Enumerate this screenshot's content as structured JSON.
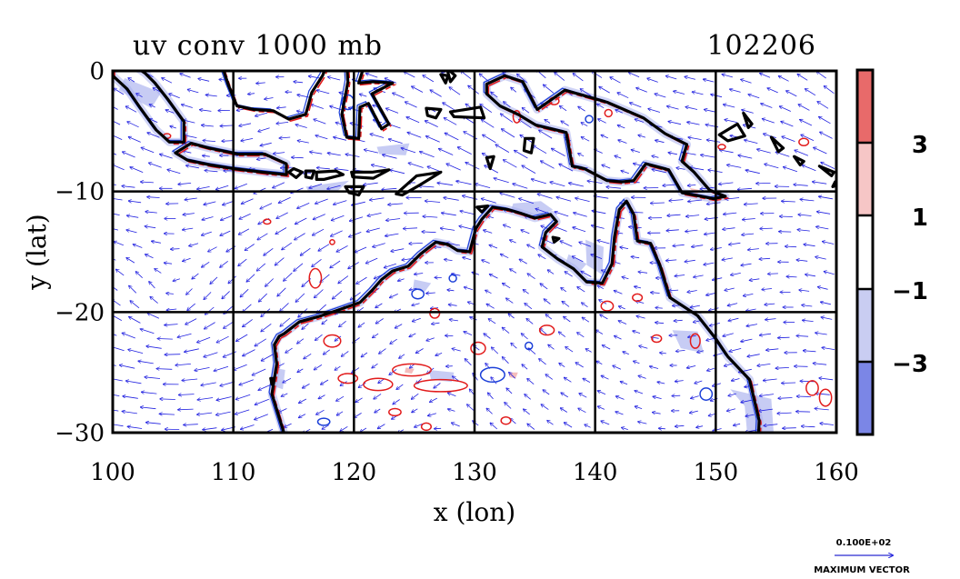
{
  "chart_data": {
    "type": "heatmap",
    "title": "uv conv 1000 mb",
    "title_right": "102206",
    "xlabel": "x (lon)",
    "ylabel": "y (lat)",
    "xlim": [
      100,
      160
    ],
    "ylim": [
      -30,
      0
    ],
    "x_ticks": [
      100,
      110,
      120,
      130,
      140,
      150,
      160
    ],
    "y_ticks": [
      0,
      -10,
      -20,
      -30
    ],
    "x_tick_labels": [
      "100",
      "110",
      "120",
      "130",
      "140",
      "150",
      "160"
    ],
    "y_tick_labels": [
      "0",
      "−10",
      "−20",
      "−30"
    ],
    "grid": true,
    "colorbar": {
      "levels": [
        "3",
        "1",
        "−1",
        "−3"
      ],
      "colors": [
        "#e86a6a",
        "#f6c6c6",
        "#ffffff",
        "#c9cdf2",
        "#7b86e6"
      ]
    },
    "vector_legend": {
      "label_top": "0.100E+02",
      "label_bottom": "MAXIMUM VECTOR",
      "color": "#2b2bd0"
    },
    "colors": {
      "vector": "#2020e0",
      "contour_positive": "#e21b1b",
      "contour_negative": "#1b3fd8",
      "coast": "#000000",
      "fill_negative": "#a9b0ee",
      "fill_positive": "#f0a0a0"
    }
  }
}
